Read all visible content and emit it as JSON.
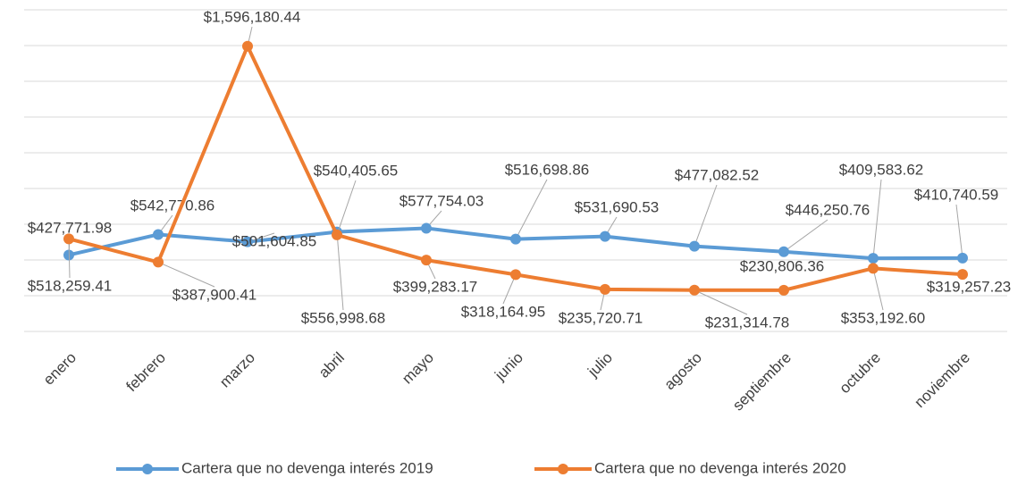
{
  "chart_data": {
    "type": "line",
    "categories": [
      "enero",
      "febrero",
      "marzo",
      "abril",
      "mayo",
      "junio",
      "julio",
      "agosto",
      "septiembre",
      "octubre",
      "noviembre"
    ],
    "series": [
      {
        "name": "Cartera que no devenga interés 2019",
        "color": "#5b9bd5",
        "values": [
          427771.98,
          542770.86,
          501604.85,
          556998.68,
          577754.03,
          516698.86,
          531690.53,
          477082.52,
          446250.76,
          409583.62,
          410740.59
        ],
        "value_labels": [
          "$427,771.98",
          "$542,770.86",
          "$501,604.85",
          "$556,998.68",
          "$577,754.03",
          "$516,698.86",
          "$531,690.53",
          "$477,082.52",
          "$446,250.76",
          "$409,583.62",
          "$410,740.59"
        ]
      },
      {
        "name": "Cartera que no devenga interés 2020",
        "color": "#ed7d31",
        "values": [
          518259.41,
          387900.41,
          1596180.44,
          540405.65,
          399283.17,
          318164.95,
          235720.71,
          231314.78,
          230806.36,
          353192.6,
          319257.23
        ],
        "value_labels": [
          "$518,259.41",
          "$387,900.41",
          "$1,596,180.44",
          "$540,405.65",
          "$399,283.17",
          "$318,164.95",
          "$235,720.71",
          "$231,314.78",
          "$230,806.36",
          "$353,192.60",
          "$319,257.23"
        ]
      }
    ],
    "ylim": [
      0,
      1800000
    ],
    "yticks": [
      0,
      200000,
      400000,
      600000,
      800000,
      1000000,
      1200000,
      1400000,
      1600000,
      1800000
    ],
    "grid": true,
    "legend": "bottom"
  }
}
